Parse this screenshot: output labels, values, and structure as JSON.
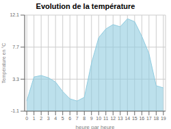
{
  "chart_data": {
    "type": "area",
    "title": "Evolution de la température",
    "x_label": "heure par heure",
    "y_label": "Température en °C",
    "x": [
      0,
      1,
      2,
      3,
      4,
      5,
      6,
      7,
      8,
      9,
      10,
      11,
      12,
      13,
      14,
      15,
      16,
      17,
      18,
      19
    ],
    "values": [
      0.3,
      3.6,
      3.8,
      3.5,
      2.9,
      1.6,
      0.6,
      0.3,
      0.8,
      5.5,
      9.0,
      10.2,
      10.8,
      10.5,
      11.6,
      11.2,
      9.2,
      6.8,
      2.4,
      2.1
    ],
    "color": "#90cce0",
    "xlim": [
      -0.3,
      19.3
    ],
    "xticks": [
      0,
      1,
      2,
      3,
      4,
      5,
      6,
      7,
      8,
      9,
      10,
      11,
      12,
      13,
      14,
      15,
      16,
      17,
      18,
      19
    ],
    "ylim": [
      -1.1,
      12.1
    ],
    "yticks": [
      -1.1,
      3.3,
      7.7,
      12.1
    ],
    "grid": true
  }
}
